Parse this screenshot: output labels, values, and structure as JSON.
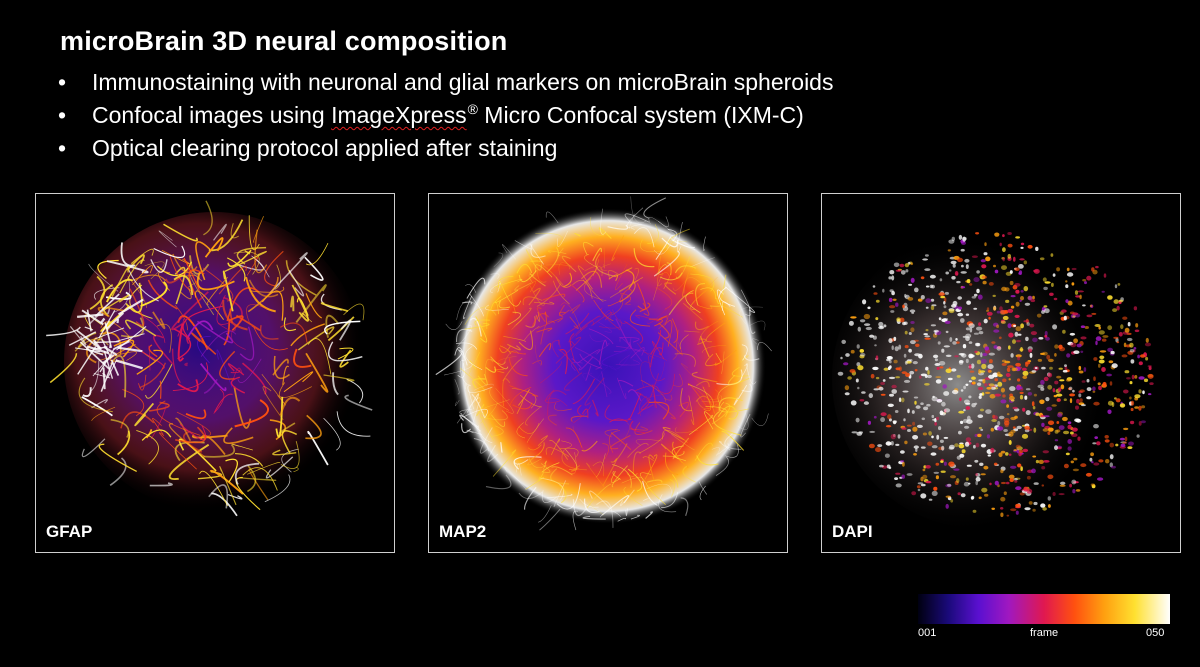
{
  "slide": {
    "title": "microBrain 3D neural composition",
    "bullets": [
      {
        "prefix": "Immunostaining with neuronal and glial markers on microBrain spheroids"
      },
      {
        "prefix": "Confocal images using ",
        "product": "ImageXpress",
        "reg": "®",
        "suffix": " Micro Confocal system (IXM-C)"
      },
      {
        "prefix": "Optical clearing protocol applied after staining"
      }
    ],
    "bullet_symbol": "•"
  },
  "panels": [
    {
      "label": "GFAP",
      "image": "astrocyte-filaments-image"
    },
    {
      "label": "MAP2",
      "image": "neuron-dendrites-image"
    },
    {
      "label": "DAPI",
      "image": "nuclei-image"
    }
  ],
  "colorbar": {
    "min_label": "001",
    "mid_label": "frame",
    "max_label": "050",
    "colors": [
      "#000010",
      "#1a0a7a",
      "#5a10d0",
      "#a018c0",
      "#e01850",
      "#ff5010",
      "#ffa010",
      "#ffe030",
      "#ffffff"
    ]
  }
}
